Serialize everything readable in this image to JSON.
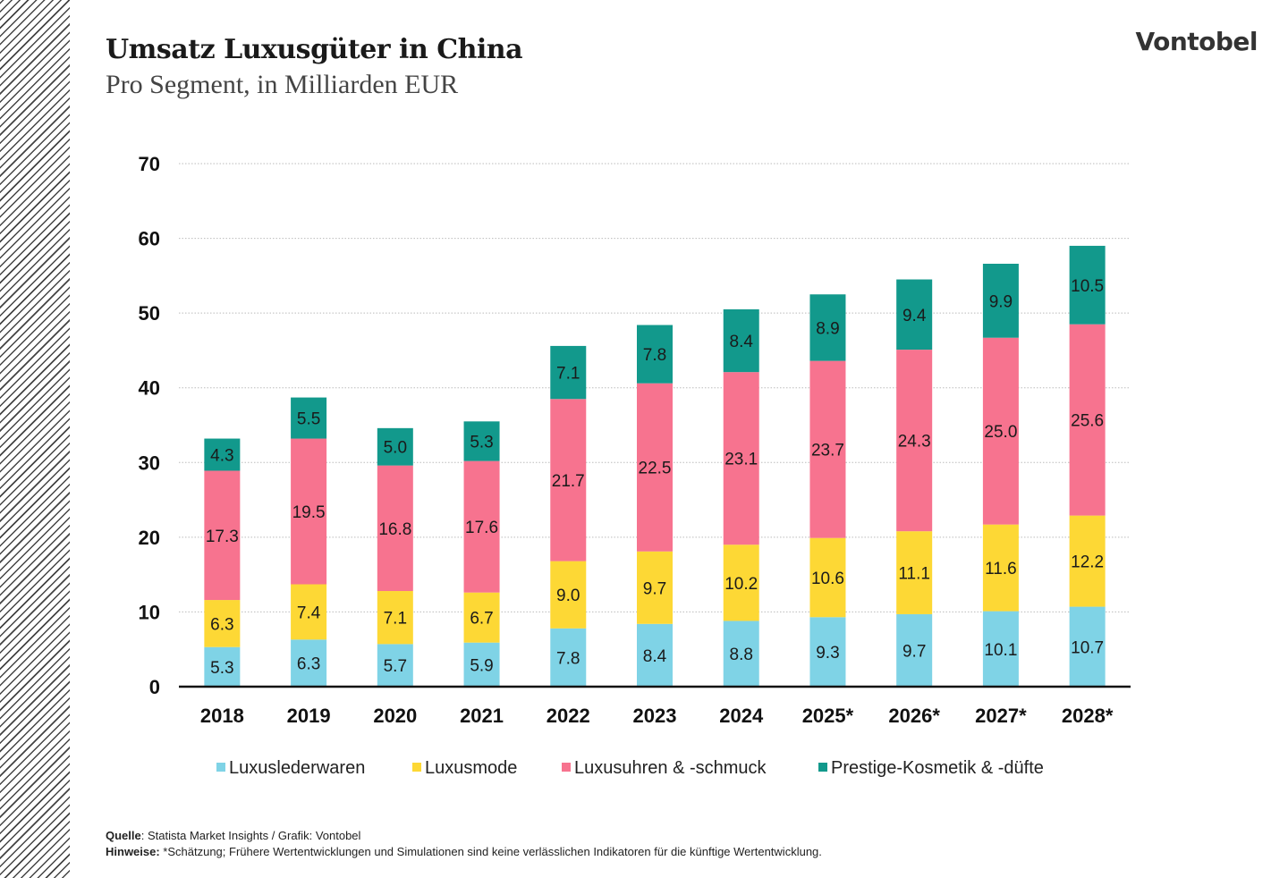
{
  "header": {
    "title": "Umsatz Luxusgüter in China",
    "subtitle": "Pro Segment, in Milliarden EUR",
    "logo": "Vontobel"
  },
  "chart_data": {
    "type": "bar",
    "stacked": true,
    "categories": [
      "2018",
      "2019",
      "2020",
      "2021",
      "2022",
      "2023",
      "2024",
      "2025*",
      "2026*",
      "2027*",
      "2028*"
    ],
    "series": [
      {
        "name": "Luxuslederwaren",
        "color": "#7fd3e6",
        "values": [
          5.3,
          6.3,
          5.7,
          5.9,
          7.8,
          8.4,
          8.8,
          9.3,
          9.7,
          10.1,
          10.7
        ]
      },
      {
        "name": "Luxusmode",
        "color": "#fdd835",
        "values": [
          6.3,
          7.4,
          7.1,
          6.7,
          9.0,
          9.7,
          10.2,
          10.6,
          11.1,
          11.6,
          12.2
        ]
      },
      {
        "name": "Luxusuhren & -schmuck",
        "color": "#f7738f",
        "values": [
          17.3,
          19.5,
          16.8,
          17.6,
          21.7,
          22.5,
          23.1,
          23.7,
          24.3,
          25.0,
          25.6
        ]
      },
      {
        "name": "Prestige-Kosmetik & -düfte",
        "color": "#12998c",
        "values": [
          4.3,
          5.5,
          5.0,
          5.3,
          7.1,
          7.8,
          8.4,
          8.9,
          9.4,
          9.9,
          10.5
        ]
      }
    ],
    "yticks": [
      "0",
      "10",
      "20",
      "30",
      "40",
      "50",
      "60",
      "70"
    ],
    "ylim": [
      0,
      70
    ],
    "grid": true,
    "legend": "bottom"
  },
  "footer": {
    "source_label": "Quelle",
    "source_text": ": Statista Market Insights / Grafik: Vontobel",
    "notes_label": "Hinweise:",
    "notes_text": " *Schätzung; Frühere Wertentwicklungen und Simulationen sind keine verlässlichen Indikatoren für die künftige Wertentwicklung."
  }
}
